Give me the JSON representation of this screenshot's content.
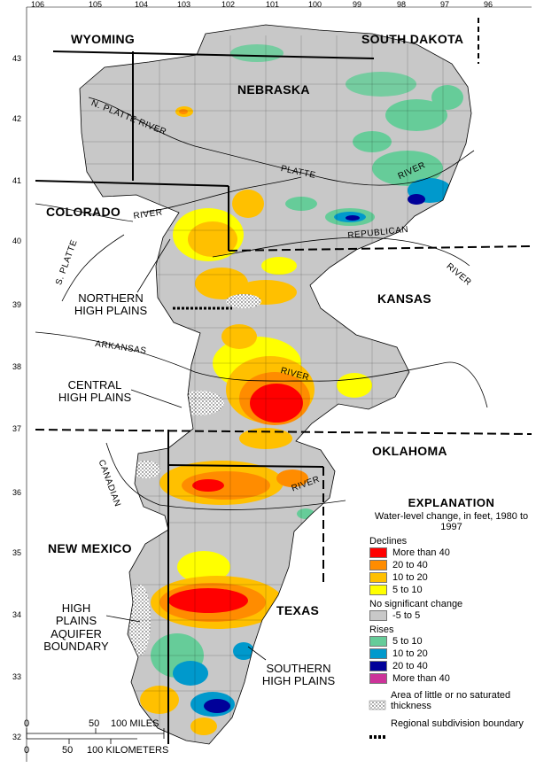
{
  "states": [
    "WYOMING",
    "SOUTH DAKOTA",
    "NEBRASKA",
    "COLORADO",
    "KANSAS",
    "OKLAHOMA",
    "NEW MEXICO",
    "TEXAS"
  ],
  "regions": {
    "northern": "NORTHERN HIGH PLAINS",
    "central": "CENTRAL HIGH PLAINS",
    "southern": "SOUTHERN HIGH PLAINS",
    "boundary": "HIGH PLAINS AQUIFER BOUNDARY"
  },
  "rivers": {
    "n_platte": "N. PLATTE RIVER",
    "platte": "PLATTE",
    "platte_river": "RIVER",
    "river_co": "RIVER",
    "republican": "REPUBLICAN",
    "river_ks": "RIVER",
    "s_platte": "S. PLATTE",
    "arkansas": "ARKANSAS",
    "river_ar": "RIVER",
    "canadian": "CANADIAN",
    "river_tx": "RIVER"
  },
  "longitudes": [
    "106",
    "105",
    "104",
    "103",
    "102",
    "101",
    "100",
    "99",
    "98",
    "97",
    "96"
  ],
  "latitudes": [
    "43",
    "42",
    "41",
    "40",
    "39",
    "38",
    "37",
    "36",
    "35",
    "34",
    "33",
    "32"
  ],
  "legend": {
    "title": "EXPLANATION",
    "subtitle": "Water-level change, in feet, 1980 to 1997",
    "declines_label": "Declines",
    "declines": [
      {
        "label": "More than 40",
        "color": "#ff0000"
      },
      {
        "label": "20 to 40",
        "color": "#ff8c00"
      },
      {
        "label": "10 to 20",
        "color": "#ffc000"
      },
      {
        "label": "5 to 10",
        "color": "#ffff00"
      }
    ],
    "nochange_label": "No significant change",
    "nochange": {
      "label": "-5 to 5",
      "color": "#c8c8c8"
    },
    "rises_label": "Rises",
    "rises": [
      {
        "label": "5 to 10",
        "color": "#66cc99"
      },
      {
        "label": "10 to 20",
        "color": "#0099cc"
      },
      {
        "label": "20 to 40",
        "color": "#000099"
      },
      {
        "label": "More than 40",
        "color": "#cc3399"
      }
    ],
    "little_saturated": "Area of little or no saturated thickness",
    "subdivision": "Regional subdivision boundary"
  },
  "scale": {
    "miles": [
      "0",
      "50",
      "100 MILES"
    ],
    "km": [
      "0",
      "50",
      "100 KILOMETERS"
    ]
  }
}
